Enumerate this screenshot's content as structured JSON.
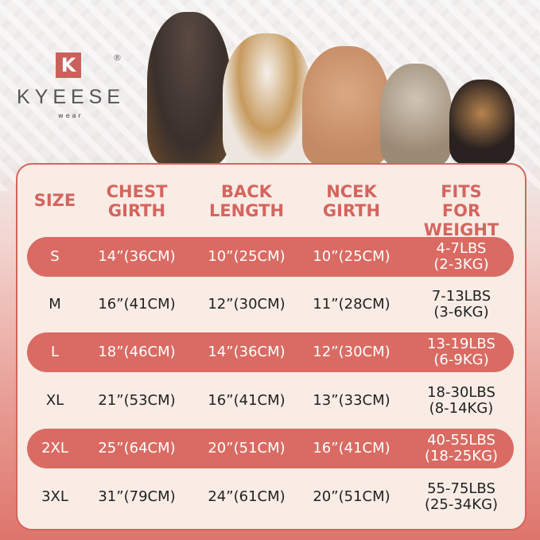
{
  "brand": {
    "initial": "K",
    "name": "KYEESE",
    "sub": "wear",
    "reg": "®"
  },
  "colors": {
    "accent": "#d96b63",
    "panel": "#f8ece5"
  },
  "table": {
    "headers": [
      "SIZE",
      "CHEST GIRTH",
      "BACK LENGTH",
      "NCEK GIRTH",
      "FITS FOR WEIGHT"
    ],
    "rows": [
      {
        "size": "S",
        "chest": "14”(36CM)",
        "back": "10”(25CM)",
        "neck": "10”(25CM)",
        "weight": "4-7LBS",
        "weight_kg": "(2-3KG)",
        "highlight": true
      },
      {
        "size": "M",
        "chest": "16”(41CM)",
        "back": "12”(30CM)",
        "neck": "11”(28CM)",
        "weight": "7-13LBS",
        "weight_kg": "(3-6KG)",
        "highlight": false
      },
      {
        "size": "L",
        "chest": "18”(46CM)",
        "back": "14”(36CM)",
        "neck": "12”(30CM)",
        "weight": "13-19LBS",
        "weight_kg": "(6-9KG)",
        "highlight": true
      },
      {
        "size": "XL",
        "chest": "21”(53CM)",
        "back": "16”(41CM)",
        "neck": "13”(33CM)",
        "weight": "18-30LBS",
        "weight_kg": "(8-14KG)",
        "highlight": false
      },
      {
        "size": "2XL",
        "chest": "25”(64CM)",
        "back": "20”(51CM)",
        "neck": "16”(41CM)",
        "weight": "40-55LBS",
        "weight_kg": "(18-25KG)",
        "highlight": true
      },
      {
        "size": "3XL",
        "chest": "31”(79CM)",
        "back": "24”(61CM)",
        "neck": "20”(51CM)",
        "weight": "55-75LBS",
        "weight_kg": "(25-34KG)",
        "highlight": false
      }
    ]
  }
}
